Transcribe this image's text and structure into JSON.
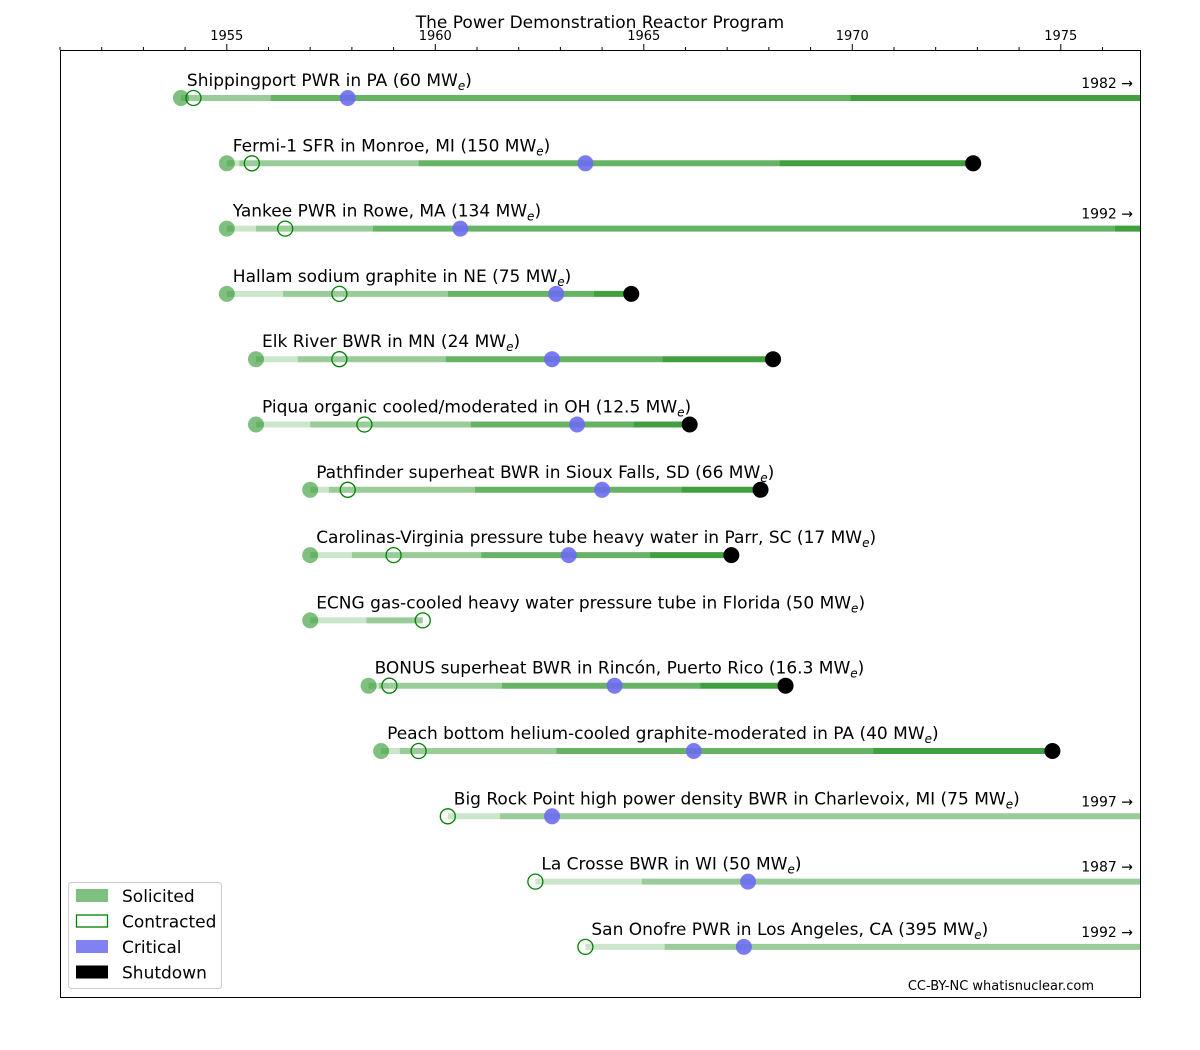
{
  "chart_data": {
    "type": "timeline",
    "title": "The Power Demonstration Reactor Program",
    "xlim": [
      1951.0,
      1976.9
    ],
    "xticks": [
      1955,
      1960,
      1965,
      1970,
      1975
    ],
    "colors": {
      "solicited": "#008000",
      "contracted": "#008000",
      "critical": "#6b6bf0",
      "shutdown": "#000000"
    },
    "legend": {
      "position": "bottom-left",
      "entries": [
        {
          "key": "solicited",
          "label": "Solicited"
        },
        {
          "key": "contracted",
          "label": "Contracted"
        },
        {
          "key": "critical",
          "label": "Critical"
        },
        {
          "key": "shutdown",
          "label": "Shutdown"
        }
      ]
    },
    "credit": "CC-BY-NC whatisnuclear.com",
    "reactors": [
      {
        "name": "Shippingport PWR in PA (",
        "mw": "60",
        "solicited": 1953.9,
        "contracted": 1954.2,
        "critical": 1957.9,
        "shutdown": 1982,
        "shutdown_label": "1982 →"
      },
      {
        "name": "Fermi-1 SFR in Monroe, MI (",
        "mw": "150",
        "solicited": 1955.0,
        "contracted": 1955.6,
        "critical": 1963.6,
        "shutdown": 1972.9,
        "shutdown_label": null
      },
      {
        "name": "Yankee PWR in Rowe, MA (",
        "mw": "134",
        "solicited": 1955.0,
        "contracted": 1956.4,
        "critical": 1960.6,
        "shutdown": 1992,
        "shutdown_label": "1992 →"
      },
      {
        "name": "Hallam sodium graphite in NE (",
        "mw": "75",
        "solicited": 1955.0,
        "contracted": 1957.7,
        "critical": 1962.9,
        "shutdown": 1964.7,
        "shutdown_label": null
      },
      {
        "name": "Elk River BWR in MN (",
        "mw": "24",
        "solicited": 1955.7,
        "contracted": 1957.7,
        "critical": 1962.8,
        "shutdown": 1968.1,
        "shutdown_label": null
      },
      {
        "name": "Piqua organic cooled/moderated in OH (",
        "mw": "12.5",
        "solicited": 1955.7,
        "contracted": 1958.3,
        "critical": 1963.4,
        "shutdown": 1966.1,
        "shutdown_label": null
      },
      {
        "name": "Pathfinder superheat BWR in Sioux Falls, SD (",
        "mw": "66",
        "solicited": 1957.0,
        "contracted": 1957.9,
        "critical": 1964.0,
        "shutdown": 1967.8,
        "shutdown_label": null
      },
      {
        "name": "Carolinas-Virginia pressure tube heavy water in Parr, SC (",
        "mw": "17",
        "solicited": 1957.0,
        "contracted": 1959.0,
        "critical": 1963.2,
        "shutdown": 1967.1,
        "shutdown_label": null
      },
      {
        "name": "ECNG gas-cooled heavy water pressure tube in Florida (",
        "mw": "50",
        "solicited": 1957.0,
        "contracted": 1959.7,
        "critical": null,
        "shutdown": null,
        "shutdown_label": null
      },
      {
        "name": "BONUS superheat BWR in Rincón, Puerto Rico (",
        "mw": "16.3",
        "solicited": 1958.4,
        "contracted": 1958.9,
        "critical": 1964.3,
        "shutdown": 1968.4,
        "shutdown_label": null
      },
      {
        "name": "Peach bottom helium-cooled graphite-moderated in PA (",
        "mw": "40",
        "solicited": 1958.7,
        "contracted": 1959.6,
        "critical": 1966.2,
        "shutdown": 1974.8,
        "shutdown_label": null
      },
      {
        "name": "Big Rock Point high power density BWR in Charlevoix, MI (",
        "mw": "75",
        "solicited": null,
        "contracted": 1960.3,
        "critical": 1962.8,
        "shutdown": 1997,
        "shutdown_label": "1997 →"
      },
      {
        "name": "La Crosse BWR in WI (",
        "mw": "50",
        "solicited": null,
        "contracted": 1962.4,
        "critical": 1967.5,
        "shutdown": 1987,
        "shutdown_label": "1987 →"
      },
      {
        "name": "San Onofre PWR in Los Angeles, CA (",
        "mw": "395",
        "solicited": null,
        "contracted": 1963.6,
        "critical": 1967.4,
        "shutdown": 1992,
        "shutdown_label": "1992 →"
      }
    ]
  }
}
